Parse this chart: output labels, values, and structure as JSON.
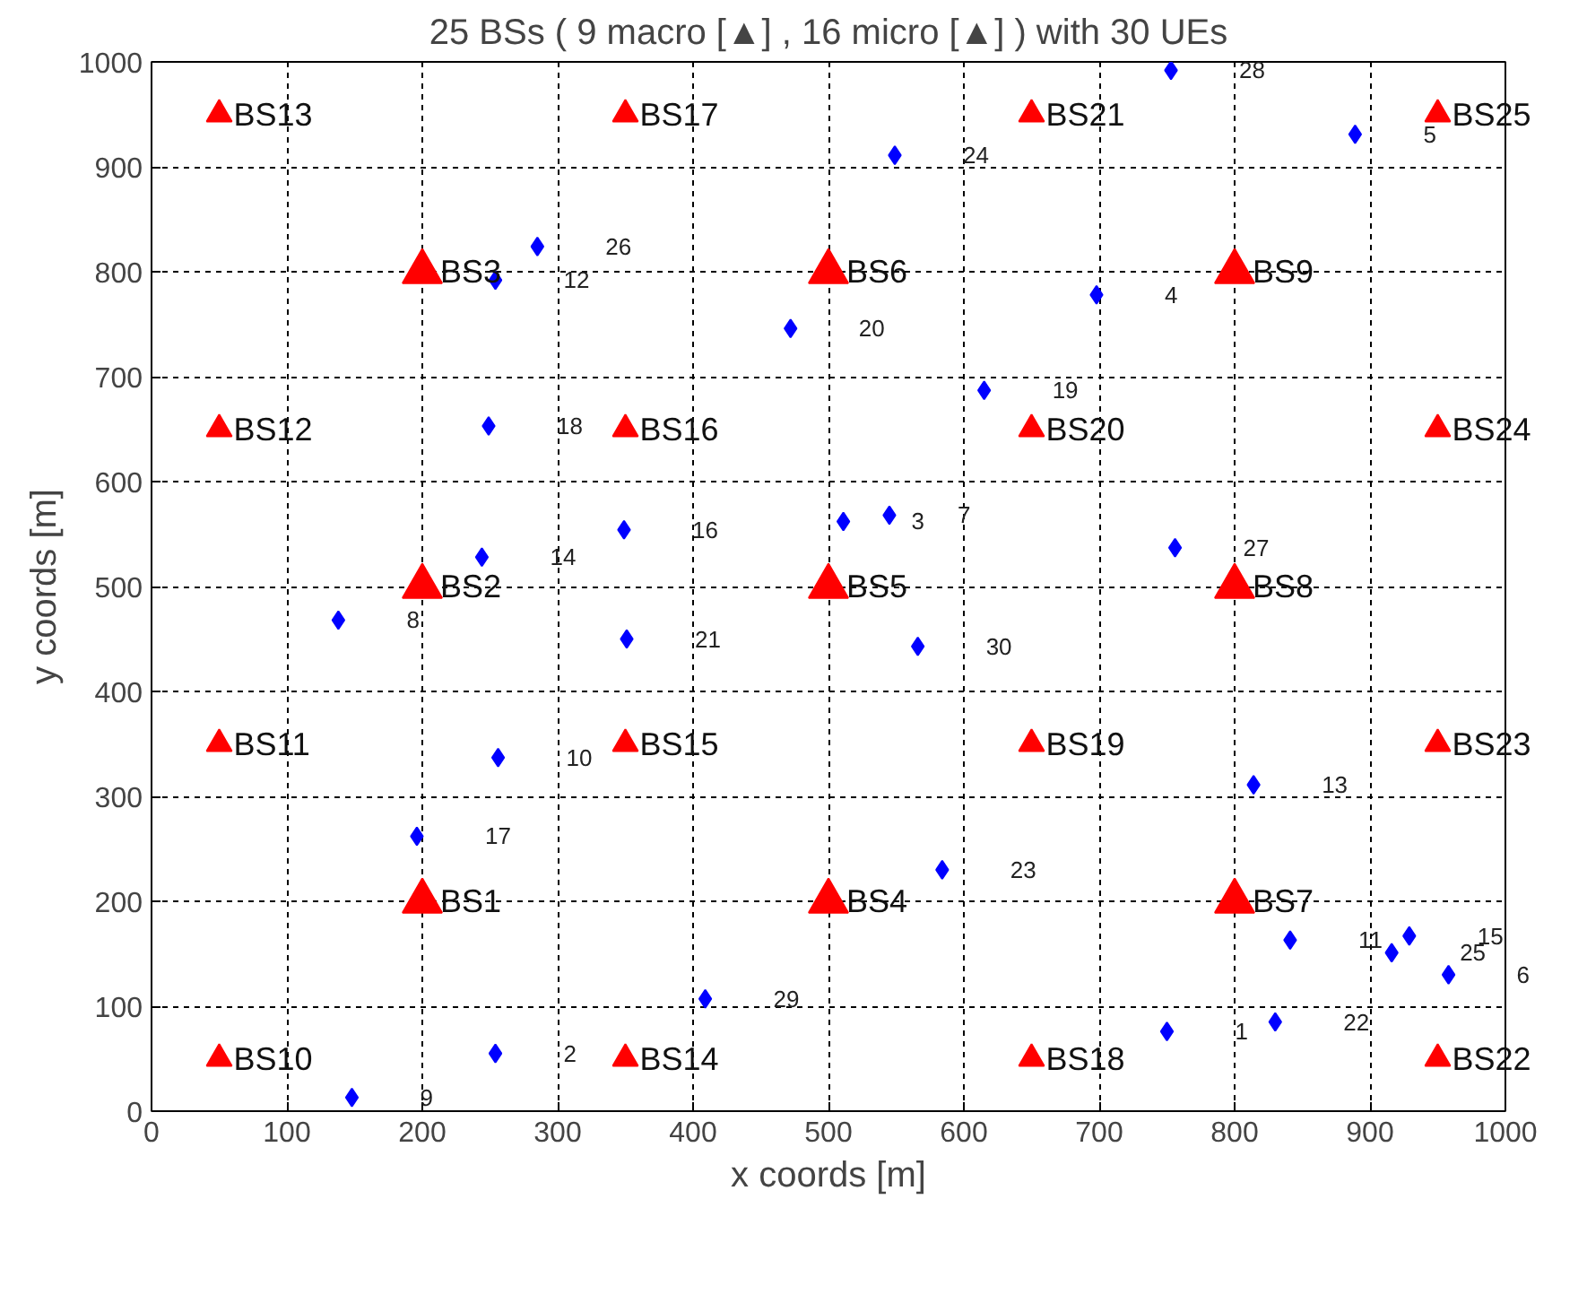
{
  "chart_data": {
    "type": "scatter",
    "title": "25 BSs ( 9 macro [▲] , 16 micro [▲] ) with 30 UEs",
    "xlabel": "x coords [m]",
    "ylabel": "y coords [m]",
    "xlim": [
      0,
      1000
    ],
    "ylim": [
      0,
      1000
    ],
    "xticks": [
      0,
      100,
      200,
      300,
      400,
      500,
      600,
      700,
      800,
      900,
      1000
    ],
    "yticks": [
      0,
      100,
      200,
      300,
      400,
      500,
      600,
      700,
      800,
      900,
      1000
    ],
    "grid": true,
    "series": [
      {
        "color": "#ff0000",
        "marker": "triangle",
        "x": [
          200,
          200,
          200,
          500,
          500,
          500,
          800,
          800,
          800
        ],
        "values": [
          200,
          500,
          800,
          200,
          500,
          800,
          200,
          500,
          800
        ],
        "value_labels": [
          "BS1",
          "BS2",
          "BS3",
          "BS4",
          "BS5",
          "BS6",
          "BS7",
          "BS8",
          "BS9"
        ]
      },
      {
        "color": "#ff0000",
        "marker": "triangle",
        "x": [
          50,
          50,
          50,
          50,
          350,
          350,
          350,
          350,
          650,
          650,
          650,
          650,
          950,
          950,
          950,
          950
        ],
        "values": [
          50,
          350,
          650,
          950,
          50,
          350,
          650,
          950,
          50,
          350,
          650,
          950,
          50,
          350,
          650,
          950
        ],
        "value_labels": [
          "BS10",
          "BS11",
          "BS12",
          "BS13",
          "BS14",
          "BS15",
          "BS16",
          "BS17",
          "BS18",
          "BS19",
          "BS20",
          "BS21",
          "BS22",
          "BS23",
          "BS24",
          "BS25"
        ]
      },
      {
        "color": "#0000ff",
        "marker": "diamond",
        "x": [
          750,
          254,
          511,
          698,
          889,
          958,
          545,
          138,
          148,
          256,
          841,
          254,
          814,
          244,
          929,
          349,
          196,
          249,
          615,
          472,
          351,
          830,
          584,
          549,
          916,
          285,
          756,
          753,
          409,
          566
        ],
        "values": [
          76,
          55,
          562,
          778,
          931,
          130,
          568,
          468,
          13,
          337,
          163,
          792,
          311,
          528,
          167,
          554,
          262,
          653,
          687,
          746,
          450,
          85,
          230,
          911,
          151,
          824,
          537,
          992,
          107,
          443
        ]
      }
    ],
    "annotations": [
      {
        "text": "1",
        "x": 750,
        "y": 76
      },
      {
        "text": "2",
        "x": 254,
        "y": 55
      },
      {
        "text": "3",
        "x": 511,
        "y": 562
      },
      {
        "text": "4",
        "x": 698,
        "y": 778
      },
      {
        "text": "5",
        "x": 889,
        "y": 931
      },
      {
        "text": "6",
        "x": 958,
        "y": 130
      },
      {
        "text": "7",
        "x": 545,
        "y": 568
      },
      {
        "text": "8",
        "x": 138,
        "y": 468
      },
      {
        "text": "9",
        "x": 148,
        "y": 13
      },
      {
        "text": "10",
        "x": 256,
        "y": 337
      },
      {
        "text": "11",
        "x": 841,
        "y": 163
      },
      {
        "text": "12",
        "x": 254,
        "y": 792
      },
      {
        "text": "13",
        "x": 814,
        "y": 311
      },
      {
        "text": "14",
        "x": 244,
        "y": 528
      },
      {
        "text": "15",
        "x": 929,
        "y": 167
      },
      {
        "text": "16",
        "x": 349,
        "y": 554
      },
      {
        "text": "17",
        "x": 196,
        "y": 262
      },
      {
        "text": "18",
        "x": 249,
        "y": 653
      },
      {
        "text": "19",
        "x": 615,
        "y": 687
      },
      {
        "text": "20",
        "x": 472,
        "y": 746
      },
      {
        "text": "21",
        "x": 351,
        "y": 450
      },
      {
        "text": "22",
        "x": 830,
        "y": 85
      },
      {
        "text": "23",
        "x": 584,
        "y": 230
      },
      {
        "text": "24",
        "x": 549,
        "y": 911
      },
      {
        "text": "25",
        "x": 916,
        "y": 151
      },
      {
        "text": "26",
        "x": 285,
        "y": 824
      },
      {
        "text": "27",
        "x": 756,
        "y": 537
      },
      {
        "text": "28",
        "x": 753,
        "y": 992
      },
      {
        "text": "29",
        "x": 409,
        "y": 107
      },
      {
        "text": "30",
        "x": 566,
        "y": 443
      }
    ]
  }
}
